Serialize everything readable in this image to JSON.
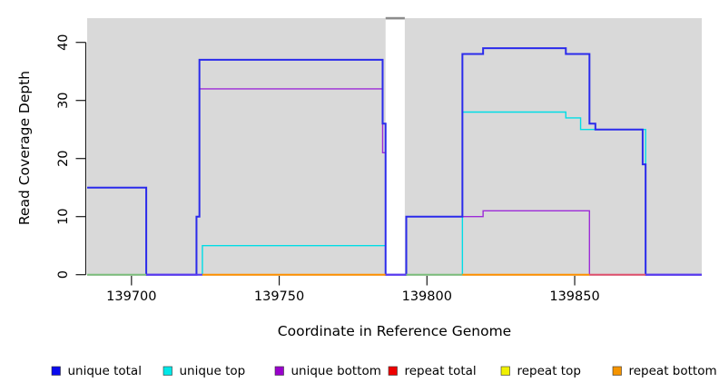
{
  "chart_data": {
    "type": "line",
    "subtype": "step-coverage",
    "title": "",
    "xlabel": "Coordinate in Reference Genome",
    "ylabel": "Read Coverage Depth",
    "xlim": [
      139685,
      139893
    ],
    "ylim": [
      0,
      44.2
    ],
    "x_ticks": [
      "139700",
      "139750",
      "139800",
      "139850"
    ],
    "x_tick_values": [
      139700,
      139750,
      139800,
      139850
    ],
    "y_ticks": [
      "0",
      "10",
      "20",
      "30",
      "40"
    ],
    "y_tick_values": [
      0,
      10,
      20,
      30,
      40
    ],
    "grid": false,
    "panel_bg": "#D9D9D9",
    "gap_region": {
      "from": 139786,
      "to": 139792.5,
      "fill": "#FFFFFF",
      "top_marker_color": "#8C8C8C"
    },
    "axis_color": "#1A1A1A",
    "series": [
      {
        "name": "unique total",
        "color": "#2B2BEB",
        "segments": [
          [
            139685,
            139705,
            15
          ],
          [
            139705,
            139722,
            0
          ],
          [
            139722,
            139723,
            10
          ],
          [
            139723,
            139785,
            37
          ],
          [
            139785,
            139786,
            26
          ],
          [
            139786,
            139793,
            0
          ],
          [
            139793,
            139812,
            10
          ],
          [
            139812,
            139819,
            38
          ],
          [
            139819,
            139847,
            39
          ],
          [
            139847,
            139855,
            38
          ],
          [
            139855,
            139857,
            26
          ],
          [
            139857,
            139873,
            25
          ],
          [
            139873,
            139874,
            19
          ],
          [
            139874,
            139893,
            0
          ]
        ]
      },
      {
        "name": "unique top",
        "color": "#00DDE6",
        "segments": [
          [
            139685,
            139724,
            0
          ],
          [
            139724,
            139786,
            5
          ],
          [
            139786,
            139812,
            0
          ],
          [
            139812,
            139847,
            28
          ],
          [
            139847,
            139852,
            27
          ],
          [
            139852,
            139874,
            25
          ],
          [
            139874,
            139893,
            0
          ]
        ]
      },
      {
        "name": "unique bottom",
        "color": "#9D2BD8",
        "segments": [
          [
            139685,
            139705,
            15
          ],
          [
            139705,
            139722,
            0
          ],
          [
            139722,
            139723,
            10
          ],
          [
            139723,
            139785,
            32
          ],
          [
            139785,
            139786,
            21
          ],
          [
            139786,
            139793,
            0
          ],
          [
            139793,
            139819,
            10
          ],
          [
            139819,
            139855,
            11
          ],
          [
            139855,
            139893,
            0
          ]
        ]
      },
      {
        "name": "repeat total",
        "color": "#E32222",
        "segments": [
          [
            139685,
            139893,
            0
          ]
        ]
      },
      {
        "name": "repeat top",
        "color": "#EDED00",
        "segments": [
          [
            139685,
            139893,
            0
          ]
        ]
      },
      {
        "name": "repeat bottom",
        "color": "#F79400",
        "segments": [
          [
            139685,
            139893,
            0
          ]
        ]
      }
    ],
    "baseline_overlay_segments": [
      {
        "from": 139685,
        "to": 139705,
        "color": "#7CBE7C"
      },
      {
        "from": 139705,
        "to": 139724,
        "color": "#5A3BEF"
      },
      {
        "from": 139724,
        "to": 139786,
        "color": "#FF9100"
      },
      {
        "from": 139786,
        "to": 139793,
        "color": "#5A3BEF"
      },
      {
        "from": 139793,
        "to": 139812,
        "color": "#7CBE7C"
      },
      {
        "from": 139812,
        "to": 139855,
        "color": "#FF9100"
      },
      {
        "from": 139855,
        "to": 139874,
        "color": "#E0506E"
      },
      {
        "from": 139874,
        "to": 139893,
        "color": "#5A3BEF"
      }
    ],
    "legend": {
      "position": "bottom",
      "items": [
        {
          "label": "unique total",
          "color": "#0A0AEE"
        },
        {
          "label": "unique top",
          "color": "#00E8E8"
        },
        {
          "label": "unique bottom",
          "color": "#9900CC"
        },
        {
          "label": "repeat total",
          "color": "#EE0000"
        },
        {
          "label": "repeat top",
          "color": "#F0F000"
        },
        {
          "label": "repeat bottom",
          "color": "#F59400"
        }
      ]
    }
  }
}
